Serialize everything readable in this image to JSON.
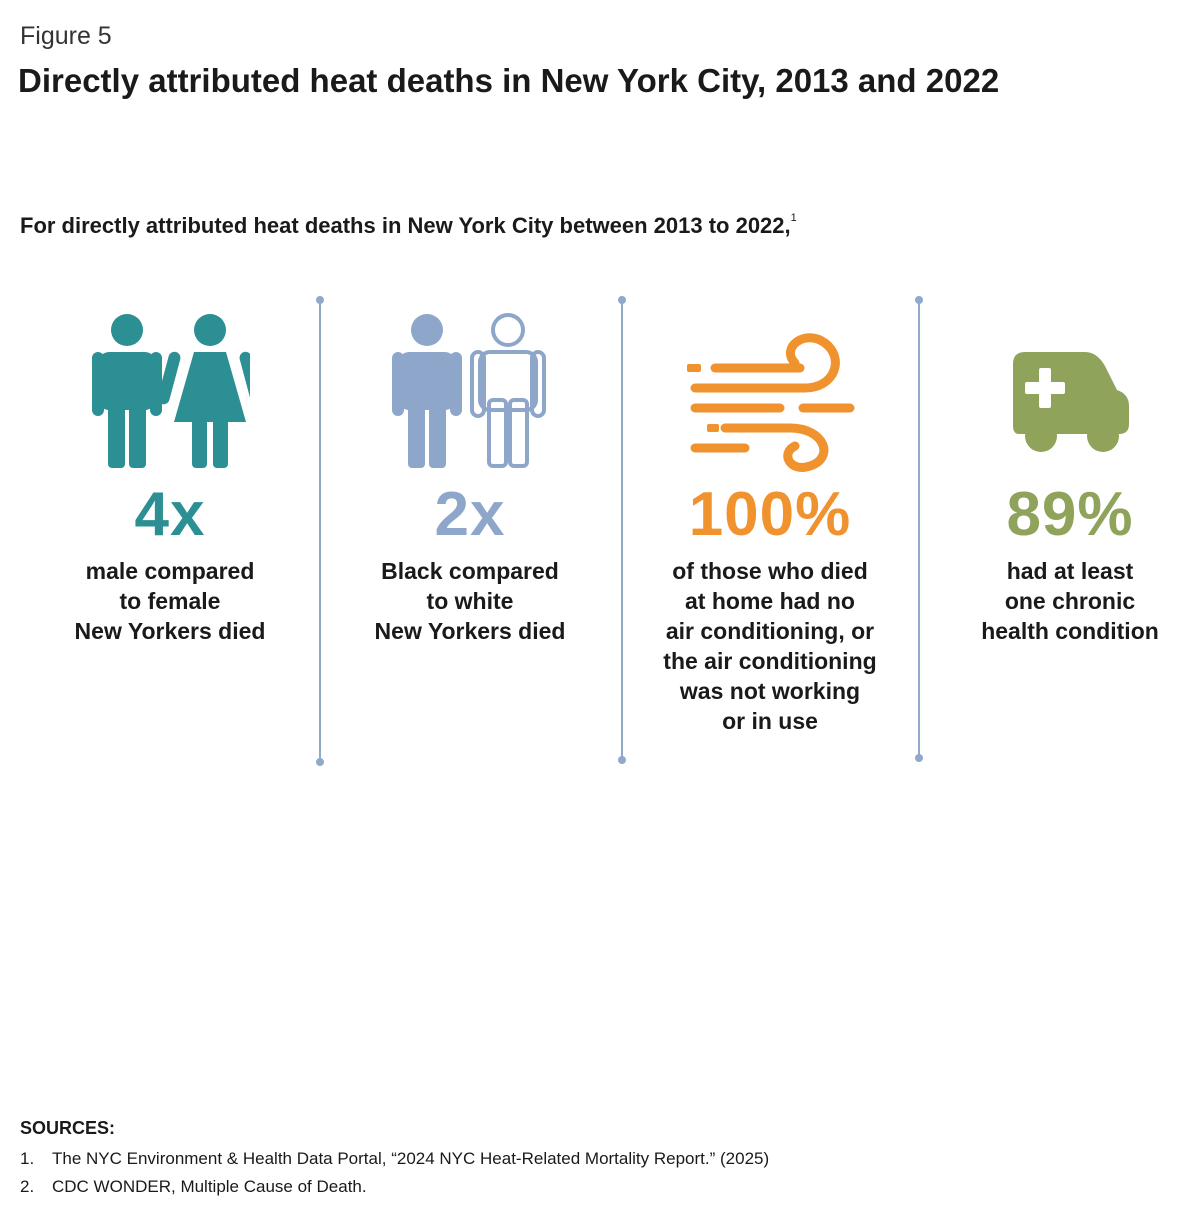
{
  "figure_label": "Figure 5",
  "title": "Directly attributed heat deaths in New York City, 2013 and 2022",
  "intro": {
    "text": "For directly attributed heat deaths in New York City between 2013 to 2022,",
    "footnote_ref": "1"
  },
  "stats": [
    {
      "icon": "male-female-icon",
      "color": "#2b8f94",
      "value": "4x",
      "lines": [
        "male compared",
        "to female",
        "New Yorkers died"
      ]
    },
    {
      "icon": "two-people-icon",
      "color": "#8ea6c9",
      "value": "2x",
      "lines": [
        "Black compared",
        "to white",
        "New Yorkers died"
      ]
    },
    {
      "icon": "wind-heat-icon",
      "color": "#f0922d",
      "value": "100%",
      "lines": [
        "of those who died",
        "at home had no",
        "air conditioning, or",
        "the air conditioning",
        "was not working",
        "or in use"
      ]
    },
    {
      "icon": "ambulance-icon",
      "color": "#8fa35b",
      "value": "89%",
      "lines": [
        "had at least",
        "one chronic",
        "health condition"
      ]
    }
  ],
  "sources": {
    "heading": "SOURCES:",
    "items": [
      {
        "num": "1.",
        "text": "The NYC Environment & Health Data Portal, “2024 NYC Heat-Related Mortality Report.” (2025)"
      },
      {
        "num": "2.",
        "text": "CDC WONDER, Multiple Cause of Death."
      }
    ]
  }
}
